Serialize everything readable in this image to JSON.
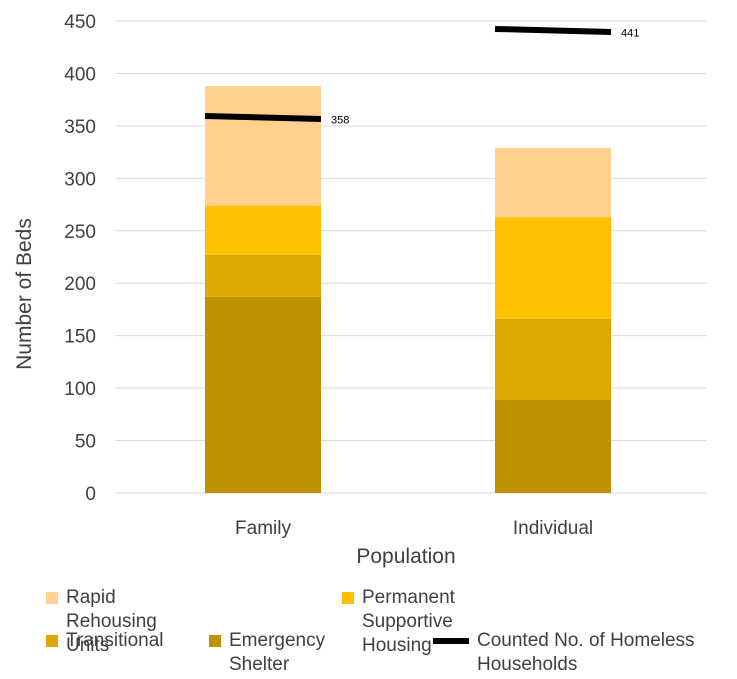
{
  "chart_data": {
    "type": "bar",
    "stacked": true,
    "categories": [
      "Family",
      "Individual"
    ],
    "xlabel": "Population",
    "ylabel": "Number of Beds",
    "ylim": [
      0,
      450
    ],
    "yticks": [
      0,
      50,
      100,
      150,
      200,
      250,
      300,
      350,
      400,
      450
    ],
    "grid": true,
    "legend_position": "bottom",
    "series": [
      {
        "name": "Emergency Shelter",
        "values": [
          187,
          89
        ],
        "color": "#BF9000"
      },
      {
        "name": "Transitional",
        "values": [
          40,
          77
        ],
        "color": "#DDA800"
      },
      {
        "name": "Permanent Supportive Housing",
        "values": [
          47,
          97
        ],
        "color": "#FFC000"
      },
      {
        "name": "Rapid Rehousing Units",
        "values": [
          114,
          66
        ],
        "color": "#FFD18C"
      }
    ],
    "overlay": {
      "name": "Counted No. of Homeless Households",
      "type": "line-marker",
      "values": [
        358,
        441
      ],
      "labels": [
        "358",
        "441"
      ],
      "color": "#000000"
    }
  },
  "legend": {
    "items": [
      {
        "label": "Rapid Rehousing Units",
        "color": "#FFD18C",
        "kind": "square"
      },
      {
        "label": "Permanent Supportive Housing",
        "color": "#FFC000",
        "kind": "square"
      },
      {
        "label": "Transitional",
        "color": "#DDA800",
        "kind": "square"
      },
      {
        "label": "Emergency Shelter",
        "color": "#BF9000",
        "kind": "square"
      },
      {
        "label": "Counted No. of Homeless Households",
        "color": "#000000",
        "kind": "line"
      }
    ]
  }
}
